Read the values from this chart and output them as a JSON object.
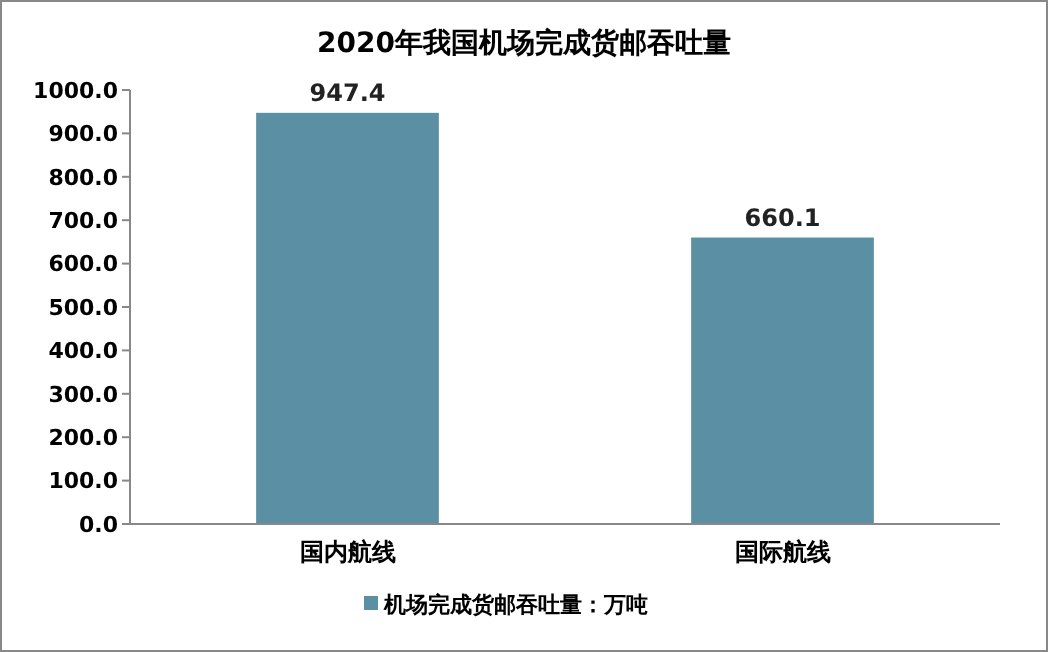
{
  "chart_data": {
    "type": "bar",
    "title": "2020年我国机场完成货邮吞吐量",
    "categories": [
      "国内航线",
      "国际航线"
    ],
    "series": [
      {
        "name": "机场完成货邮吞吐量：万吨",
        "color": "#5b8fa3",
        "values": [
          947.4,
          660.1
        ]
      }
    ],
    "ylim": [
      0,
      1000
    ],
    "yticks": [
      {
        "value": 0,
        "label": "0.0"
      },
      {
        "value": 100,
        "label": "100.0"
      },
      {
        "value": 200,
        "label": "200.0"
      },
      {
        "value": 300,
        "label": "300.0"
      },
      {
        "value": 400,
        "label": "400.0"
      },
      {
        "value": 500,
        "label": "500.0"
      },
      {
        "value": 600,
        "label": "600.0"
      },
      {
        "value": 700,
        "label": "700.0"
      },
      {
        "value": 800,
        "label": "800.0"
      },
      {
        "value": 900,
        "label": "900.0"
      },
      {
        "value": 1000,
        "label": "1000.0"
      }
    ],
    "data_labels": true,
    "legend": "bottom",
    "grid": false
  }
}
